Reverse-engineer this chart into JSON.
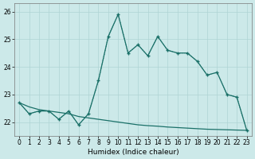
{
  "xlabel": "Humidex (Indice chaleur)",
  "bg_color": "#cce9e9",
  "line_color": "#1a7068",
  "grid_color": "#afd4d4",
  "xlim": [
    -0.5,
    23.5
  ],
  "ylim": [
    21.5,
    26.3
  ],
  "yticks": [
    22,
    23,
    24,
    25,
    26
  ],
  "xticks": [
    0,
    1,
    2,
    3,
    4,
    5,
    6,
    7,
    8,
    9,
    10,
    11,
    12,
    13,
    14,
    15,
    16,
    17,
    18,
    19,
    20,
    21,
    22,
    23
  ],
  "x": [
    0,
    1,
    2,
    3,
    4,
    5,
    6,
    7,
    8,
    9,
    10,
    11,
    12,
    13,
    14,
    15,
    16,
    17,
    18,
    19,
    20,
    21,
    22,
    23
  ],
  "y_markers": [
    22.7,
    22.3,
    22.4,
    22.4,
    22.1,
    22.4,
    21.9,
    22.3,
    23.5,
    25.1,
    25.9,
    24.5,
    24.8,
    24.4,
    25.1,
    24.6,
    24.5,
    24.5,
    24.2,
    23.7,
    23.8,
    23.0,
    22.9,
    21.7
  ],
  "y_dotted": [
    22.7,
    22.3,
    22.4,
    22.4,
    22.1,
    22.4,
    21.9,
    22.3,
    23.5,
    25.1,
    25.9,
    24.5,
    24.8,
    24.4,
    25.1,
    24.6,
    24.5,
    24.5,
    24.2,
    23.7,
    23.8,
    23.0,
    22.9,
    21.7
  ],
  "y_solid": [
    22.7,
    22.55,
    22.45,
    22.4,
    22.35,
    22.3,
    22.2,
    22.15,
    22.1,
    22.05,
    22.0,
    21.95,
    21.9,
    21.87,
    21.85,
    21.82,
    21.8,
    21.78,
    21.76,
    21.74,
    21.73,
    21.72,
    21.71,
    21.7
  ]
}
